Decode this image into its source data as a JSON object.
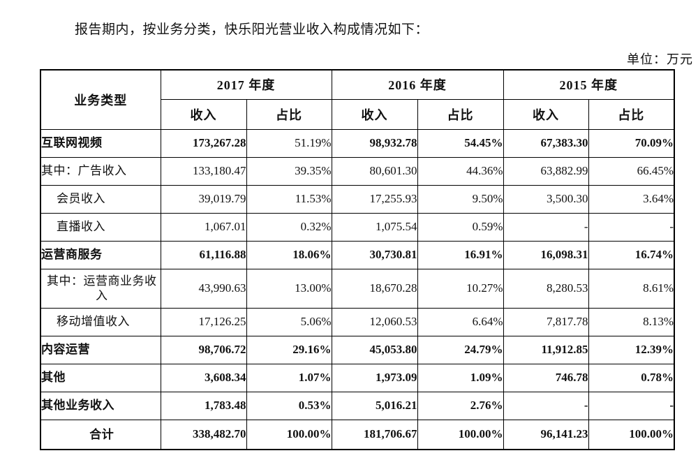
{
  "page": {
    "intro": "报告期内，按业务分类，快乐阳光营业收入构成情况如下：",
    "unit_label": "单位：万元"
  },
  "table": {
    "header": {
      "business_type": "业务类型",
      "year_groups": [
        "2017 年度",
        "2016 年度",
        "2015 年度"
      ],
      "sub_income": "收入",
      "sub_ratio": "占比"
    },
    "rows": [
      {
        "label": "互联网视频",
        "align": "left",
        "bold": true,
        "tall": false,
        "last": false,
        "cells": [
          {
            "v": "173,267.28",
            "b": true
          },
          {
            "v": "51.19%",
            "b": false
          },
          {
            "v": "98,932.78",
            "b": true
          },
          {
            "v": "54.45%",
            "b": true
          },
          {
            "v": "67,383.30",
            "b": true
          },
          {
            "v": "70.09%",
            "b": true
          }
        ]
      },
      {
        "label": "其中：广告收入",
        "align": "left",
        "bold": false,
        "tall": false,
        "last": false,
        "cells": [
          {
            "v": "133,180.47",
            "b": false
          },
          {
            "v": "39.35%",
            "b": false
          },
          {
            "v": "80,601.30",
            "b": false
          },
          {
            "v": "44.36%",
            "b": false
          },
          {
            "v": "63,882.99",
            "b": false
          },
          {
            "v": "66.45%",
            "b": false
          }
        ]
      },
      {
        "label": "会员收入",
        "align": "indent",
        "bold": false,
        "tall": false,
        "last": false,
        "cells": [
          {
            "v": "39,019.79",
            "b": false
          },
          {
            "v": "11.53%",
            "b": false
          },
          {
            "v": "17,255.93",
            "b": false
          },
          {
            "v": "9.50%",
            "b": false
          },
          {
            "v": "3,500.30",
            "b": false
          },
          {
            "v": "3.64%",
            "b": false
          }
        ]
      },
      {
        "label": "直播收入",
        "align": "indent",
        "bold": false,
        "tall": false,
        "last": false,
        "cells": [
          {
            "v": "1,067.01",
            "b": false
          },
          {
            "v": "0.32%",
            "b": false
          },
          {
            "v": "1,075.54",
            "b": false
          },
          {
            "v": "0.59%",
            "b": false
          },
          {
            "v": "-",
            "b": false
          },
          {
            "v": "-",
            "b": false
          }
        ]
      },
      {
        "label": "运营商服务",
        "align": "left",
        "bold": true,
        "tall": false,
        "last": false,
        "cells": [
          {
            "v": "61,116.88",
            "b": true
          },
          {
            "v": "18.06%",
            "b": true
          },
          {
            "v": "30,730.81",
            "b": true
          },
          {
            "v": "16.91%",
            "b": true
          },
          {
            "v": "16,098.31",
            "b": true
          },
          {
            "v": "16.74%",
            "b": true
          }
        ]
      },
      {
        "label": "其中：运营商业务收入",
        "align": "center",
        "bold": false,
        "tall": true,
        "last": false,
        "cells": [
          {
            "v": "43,990.63",
            "b": false
          },
          {
            "v": "13.00%",
            "b": false
          },
          {
            "v": "18,670.28",
            "b": false
          },
          {
            "v": "10.27%",
            "b": false
          },
          {
            "v": "8,280.53",
            "b": false
          },
          {
            "v": "8.61%",
            "b": false
          }
        ]
      },
      {
        "label": "移动增值收入",
        "align": "indent",
        "bold": false,
        "tall": false,
        "last": false,
        "cells": [
          {
            "v": "17,126.25",
            "b": false
          },
          {
            "v": "5.06%",
            "b": false
          },
          {
            "v": "12,060.53",
            "b": false
          },
          {
            "v": "6.64%",
            "b": false
          },
          {
            "v": "7,817.78",
            "b": false
          },
          {
            "v": "8.13%",
            "b": false
          }
        ]
      },
      {
        "label": "内容运营",
        "align": "left",
        "bold": true,
        "tall": false,
        "last": false,
        "cells": [
          {
            "v": "98,706.72",
            "b": true
          },
          {
            "v": "29.16%",
            "b": true
          },
          {
            "v": "45,053.80",
            "b": true
          },
          {
            "v": "24.79%",
            "b": true
          },
          {
            "v": "11,912.85",
            "b": true
          },
          {
            "v": "12.39%",
            "b": true
          }
        ]
      },
      {
        "label": "其他",
        "align": "left",
        "bold": true,
        "tall": false,
        "last": false,
        "cells": [
          {
            "v": "3,608.34",
            "b": true
          },
          {
            "v": "1.07%",
            "b": true
          },
          {
            "v": "1,973.09",
            "b": true
          },
          {
            "v": "1.09%",
            "b": true
          },
          {
            "v": "746.78",
            "b": true
          },
          {
            "v": "0.78%",
            "b": true
          }
        ]
      },
      {
        "label": "其他业务收入",
        "align": "left",
        "bold": true,
        "tall": false,
        "last": false,
        "cells": [
          {
            "v": "1,783.48",
            "b": true
          },
          {
            "v": "0.53%",
            "b": true
          },
          {
            "v": "5,016.21",
            "b": true
          },
          {
            "v": "2.76%",
            "b": true
          },
          {
            "v": "-",
            "b": true
          },
          {
            "v": "-",
            "b": true
          }
        ]
      },
      {
        "label": "合计",
        "align": "center",
        "bold": true,
        "tall": false,
        "last": true,
        "cells": [
          {
            "v": "338,482.70",
            "b": true
          },
          {
            "v": "100.00%",
            "b": true
          },
          {
            "v": "181,706.67",
            "b": true
          },
          {
            "v": "100.00%",
            "b": true
          },
          {
            "v": "96,141.23",
            "b": true
          },
          {
            "v": "100.00%",
            "b": true
          }
        ]
      }
    ]
  }
}
